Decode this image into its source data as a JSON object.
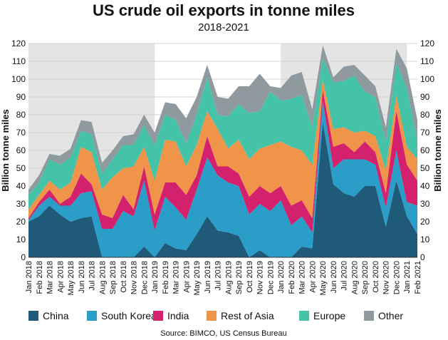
{
  "chart_data": {
    "type": "stacked_area",
    "title": "US crude oil exports in tonne miles",
    "subtitle": "2018-2021",
    "y_label": "Billion tonne miles",
    "source": "Source: BIMCO, US Census Bureau",
    "categories": [
      "Jan 2018",
      "Feb 2018",
      "Mar 2018",
      "Apr 2018",
      "May 2018",
      "Jun 2018",
      "Jul 2018",
      "Aug 2018",
      "Sep 2018",
      "Oct 2018",
      "Nov 2018",
      "Dec 2018",
      "Jan 2019",
      "Feb 2019",
      "Mar 2019",
      "Apr 2019",
      "May 2019",
      "Jun 2019",
      "Jul 2019",
      "Aug 2019",
      "Sep 2019",
      "Oct 2019",
      "Nov 2019",
      "Dec 2019",
      "Jan 2020",
      "Feb 2020",
      "Mar 2020",
      "Apr 2020",
      "May 2020",
      "Jun 2020",
      "Jul 2020",
      "Aug 2020",
      "Sep 2020",
      "Oct 2020",
      "Nov 2020",
      "Dec 2020",
      "Jan 2021",
      "Feb 2021"
    ],
    "series": [
      {
        "name": "China",
        "color": "#1f5b78",
        "values": [
          20,
          23,
          29,
          24,
          20,
          22,
          23,
          0,
          0,
          0,
          0,
          6,
          0,
          8,
          5,
          4,
          13,
          23,
          15,
          14,
          12,
          0,
          4,
          0,
          0,
          0,
          6,
          5,
          76,
          41,
          36,
          34,
          40,
          40,
          17,
          43,
          23,
          13
        ]
      },
      {
        "name": "South Korea",
        "color": "#2a9dc8",
        "values": [
          1,
          6,
          5,
          5,
          9,
          14,
          14,
          16,
          16,
          26,
          23,
          37,
          15,
          26,
          23,
          17,
          25,
          33,
          31,
          28,
          28,
          24,
          26,
          26,
          32,
          18,
          17,
          9,
          12,
          9,
          19,
          21,
          15,
          12,
          11,
          17,
          8,
          16
        ]
      },
      {
        "name": "India",
        "color": "#d4216d",
        "values": [
          1,
          2,
          4,
          1,
          5,
          11,
          4,
          8,
          6,
          9,
          4,
          8,
          9,
          8,
          14,
          14,
          8,
          12,
          5,
          9,
          7,
          10,
          10,
          10,
          8,
          11,
          9,
          8,
          6,
          12,
          9,
          4,
          10,
          7,
          8,
          22,
          21,
          14
        ]
      },
      {
        "name": "Rest of Asia",
        "color": "#f0944a",
        "values": [
          5,
          4,
          5,
          8,
          8,
          15,
          18,
          14,
          23,
          15,
          24,
          11,
          19,
          24,
          23,
          16,
          17,
          14,
          21,
          10,
          19,
          21,
          21,
          27,
          25,
          33,
          28,
          30,
          6,
          10,
          9,
          11,
          6,
          9,
          13,
          9,
          10,
          12
        ]
      },
      {
        "name": "Europe",
        "color": "#45c3a8",
        "values": [
          8,
          7,
          12,
          14,
          14,
          9,
          10,
          9,
          10,
          13,
          12,
          12,
          20,
          14,
          12,
          13,
          17,
          19,
          8,
          18,
          20,
          26,
          21,
          30,
          23,
          27,
          31,
          21,
          12,
          26,
          26,
          32,
          22,
          22,
          16,
          18,
          33,
          10
        ]
      },
      {
        "name": "Other",
        "color": "#8f9a9e",
        "values": [
          3,
          4,
          3,
          5,
          5,
          6,
          7,
          6,
          5,
          5,
          6,
          6,
          7,
          7,
          9,
          14,
          10,
          7,
          10,
          10,
          10,
          15,
          21,
          3,
          7,
          13,
          13,
          10,
          7,
          3,
          8,
          6,
          9,
          6,
          8,
          8,
          11,
          12
        ]
      }
    ],
    "ylim": [
      0,
      120
    ],
    "yticks": [
      0,
      10,
      20,
      30,
      40,
      50,
      60,
      70,
      80,
      90,
      100,
      110,
      120
    ],
    "grid": true,
    "legend": "bottom"
  }
}
